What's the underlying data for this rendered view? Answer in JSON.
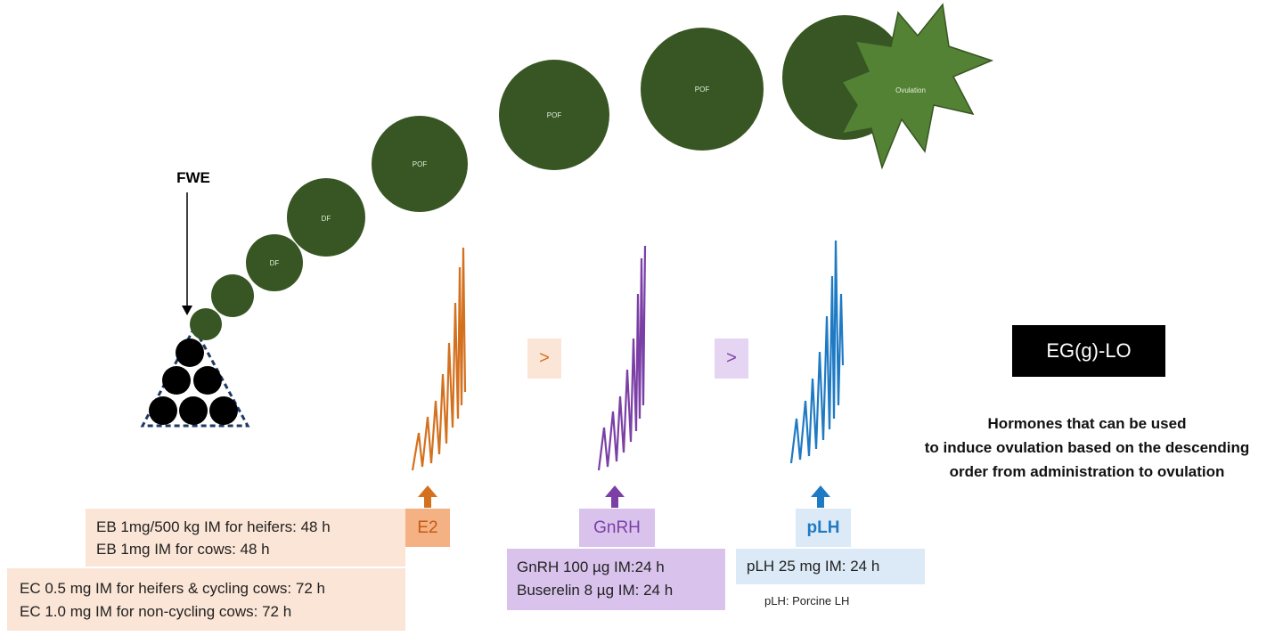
{
  "fwe_label": "FWE",
  "follicles": {
    "df_label": "DF",
    "pof_label": "POF",
    "ovulation_label": "Ovulation"
  },
  "hormones": [
    {
      "key": "e2",
      "label": "E2",
      "color": "#d4711f",
      "box_color": "#f4b183"
    },
    {
      "key": "gnrh",
      "label": "GnRH",
      "color": "#7b3fa6",
      "box_color": "#d9c3ec"
    },
    {
      "key": "plh",
      "label": "pLH",
      "color": "#1f7ac4",
      "box_color": "#d6e9f8"
    }
  ],
  "comparators": [
    ">",
    ">"
  ],
  "mnemonic": "EG(g)-LO",
  "caption_lines": [
    "Hormones that can be used",
    "to induce ovulation based on the descending",
    "order from administration to ovulation"
  ],
  "doses": {
    "eb_lines": [
      "EB 1mg/500 kg IM for heifers: 48 h",
      "EB 1mg IM for cows: 48 h"
    ],
    "ec_lines": [
      "EC 0.5 mg IM for heifers & cycling cows: 72 h",
      "EC 1.0 mg IM for non-cycling cows: 72 h"
    ],
    "gnrh_lines": [
      "GnRH 100 µg IM:24 h",
      "Buserelin 8 µg IM: 24 h"
    ],
    "plh_lines": [
      "pLH 25 mg IM: 24 h"
    ]
  },
  "footnote": "pLH: Porcine LH",
  "colors": {
    "follicle": "#375623",
    "ovulation": "#548235",
    "dose_bg": "#fbe5d6",
    "gnrh_bg": "#d9c3ec",
    "plh_bg": "#dbeaf6"
  }
}
